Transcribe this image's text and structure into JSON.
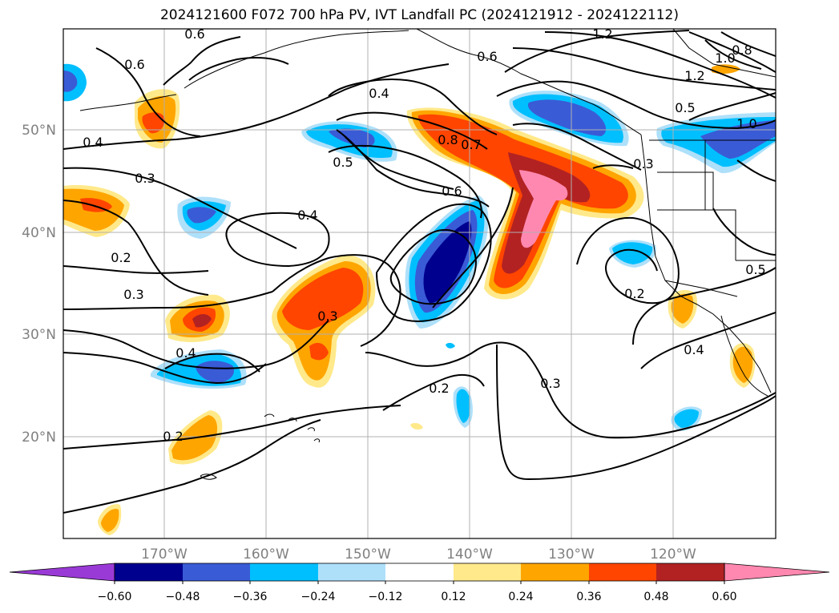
{
  "title": "2024121600 F072 700 hPa PV, IVT Landfall PC (2024121912 - 2024122112)",
  "latitude_labels": [
    "50°N",
    "40°N",
    "30°N",
    "20°N"
  ],
  "longitude_labels": [
    "170°W",
    "160°W",
    "150°W",
    "140°W",
    "130°W",
    "120°W"
  ],
  "contour_labels": [
    "0.6",
    "0.6",
    "0.4",
    "0.3",
    "0.2",
    "0.3",
    "0.4",
    "0.4",
    "0.5",
    "0.8",
    "0.7",
    "0.6",
    "0.6",
    "1.2",
    "1.2",
    "1.0",
    "0.8",
    "0.5",
    "1.0",
    "0.3",
    "0.2",
    "0.4",
    "0.5",
    "0.3",
    "0.4",
    "0.2",
    "0.2",
    "0.3"
  ],
  "colorbar": {
    "ticks": [
      "−0.60",
      "−0.48",
      "−0.36",
      "−0.24",
      "−0.12",
      "0.12",
      "0.24",
      "0.36",
      "0.48",
      "0.60"
    ],
    "colors": [
      "#9a3ad6",
      "#00008f",
      "#3a5bd6",
      "#00bfff",
      "#aee0fa",
      "#ffffff",
      "#ffe98a",
      "#ffa500",
      "#ff4500",
      "#b22222",
      "#ff88b0"
    ]
  }
}
